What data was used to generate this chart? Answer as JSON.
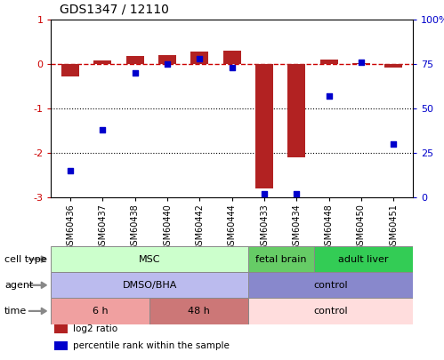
{
  "title": "GDS1347 / 12110",
  "samples": [
    "GSM60436",
    "GSM60437",
    "GSM60438",
    "GSM60440",
    "GSM60442",
    "GSM60444",
    "GSM60433",
    "GSM60434",
    "GSM60448",
    "GSM60450",
    "GSM60451"
  ],
  "log2_ratio": [
    -0.28,
    0.08,
    0.18,
    0.2,
    0.28,
    0.3,
    -2.8,
    -2.1,
    0.1,
    0.02,
    -0.07
  ],
  "percentile": [
    15,
    38,
    70,
    75,
    78,
    73,
    2,
    2,
    57,
    76,
    30
  ],
  "ylim_left": [
    -3.0,
    1.0
  ],
  "ylim_right": [
    0,
    100
  ],
  "yticks_left": [
    1,
    0,
    -1,
    -2,
    -3
  ],
  "yticks_right": [
    100,
    75,
    50,
    25,
    0
  ],
  "hline_y": 0,
  "dotted_lines": [
    -1,
    -2
  ],
  "bar_color": "#b22222",
  "scatter_color": "#0000cc",
  "dashed_line_color": "#cc0000",
  "cell_type_groups": [
    {
      "label": "MSC",
      "start": 0,
      "end": 6,
      "color": "#ccffcc",
      "border": "#888888"
    },
    {
      "label": "fetal brain",
      "start": 6,
      "end": 8,
      "color": "#66cc66",
      "border": "#888888"
    },
    {
      "label": "adult liver",
      "start": 8,
      "end": 11,
      "color": "#33cc55",
      "border": "#888888"
    }
  ],
  "agent_groups": [
    {
      "label": "DMSO/BHA",
      "start": 0,
      "end": 6,
      "color": "#bbbbee",
      "border": "#888888"
    },
    {
      "label": "control",
      "start": 6,
      "end": 11,
      "color": "#8888cc",
      "border": "#888888"
    }
  ],
  "time_groups": [
    {
      "label": "6 h",
      "start": 0,
      "end": 3,
      "color": "#f0a0a0",
      "border": "#888888"
    },
    {
      "label": "48 h",
      "start": 3,
      "end": 6,
      "color": "#cc7777",
      "border": "#888888"
    },
    {
      "label": "control",
      "start": 6,
      "end": 11,
      "color": "#ffdddd",
      "border": "#888888"
    }
  ],
  "row_labels": [
    "cell type",
    "agent",
    "time"
  ],
  "legend_items": [
    {
      "label": "log2 ratio",
      "color": "#b22222"
    },
    {
      "label": "percentile rank within the sample",
      "color": "#0000cc"
    }
  ],
  "bar_width": 0.55,
  "scatter_size": 22,
  "background_color": "#ffffff"
}
